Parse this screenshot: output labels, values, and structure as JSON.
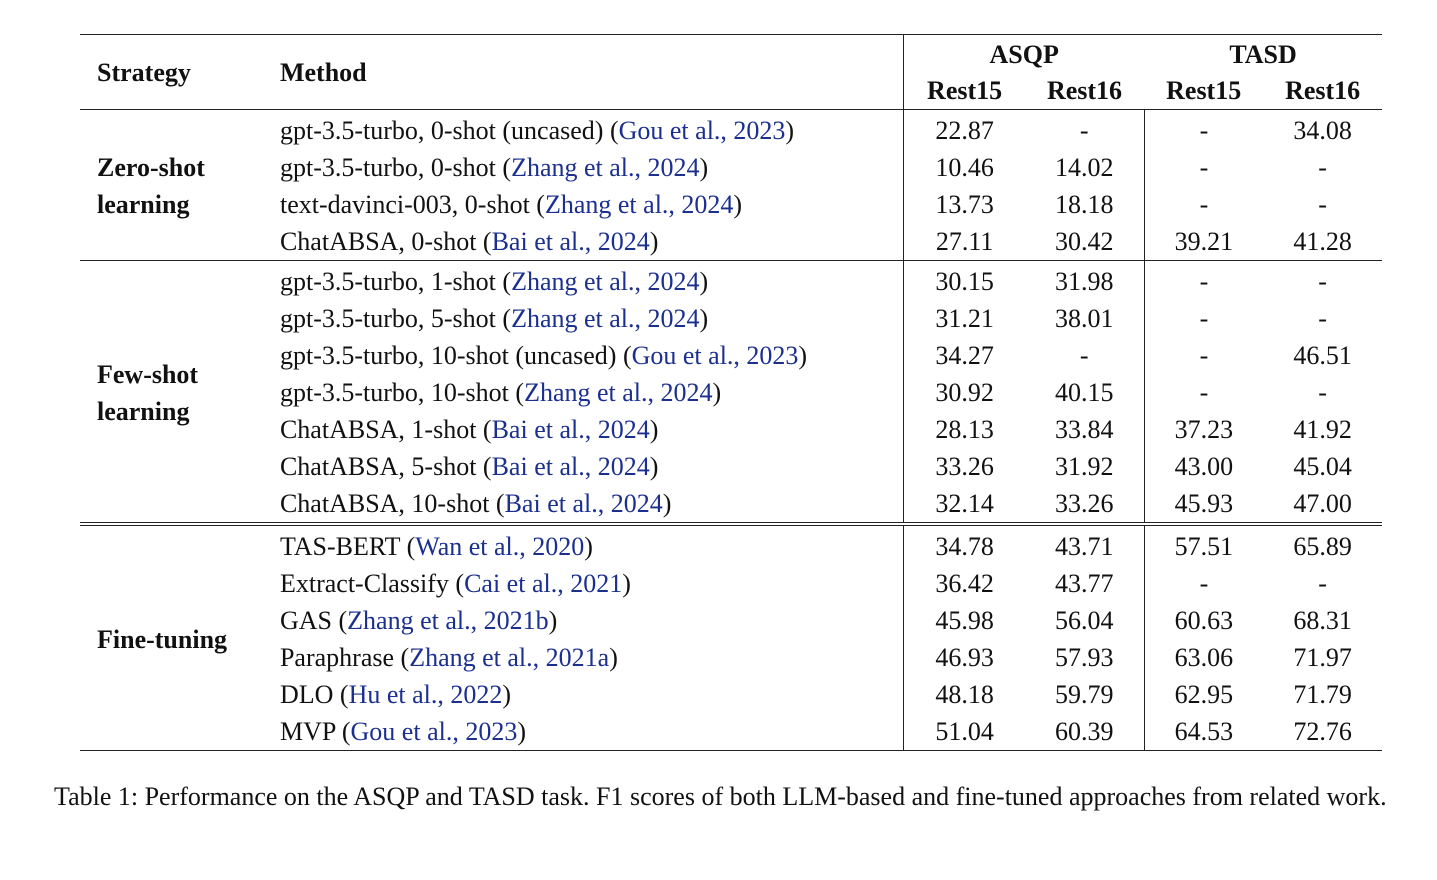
{
  "table": {
    "headers": {
      "strategy": "Strategy",
      "method": "Method",
      "group_asqp": "ASQP",
      "group_tasd": "TASD",
      "sub": [
        "Rest15",
        "Rest16",
        "Rest15",
        "Rest16"
      ]
    },
    "sections": [
      {
        "strategy": "Zero-shot learning",
        "rows": [
          {
            "method": "gpt-3.5-turbo, 0-shot (uncased) (",
            "cite": "Gou et al., 2023",
            "close": ")",
            "values": [
              "22.87",
              "-",
              "-",
              "34.08"
            ],
            "bold": [
              false,
              false,
              false,
              false
            ]
          },
          {
            "method": "gpt-3.5-turbo, 0-shot (",
            "cite": "Zhang et al., 2024",
            "close": ")",
            "values": [
              "10.46",
              "14.02",
              "-",
              "-"
            ],
            "bold": [
              false,
              false,
              false,
              false
            ]
          },
          {
            "method": "text-davinci-003, 0-shot (",
            "cite": "Zhang et al., 2024",
            "close": ")",
            "values": [
              "13.73",
              "18.18",
              "-",
              "-"
            ],
            "bold": [
              false,
              false,
              false,
              false
            ]
          },
          {
            "method": "ChatABSA, 0-shot (",
            "cite": "Bai et al., 2024",
            "close": ")",
            "values": [
              "27.11",
              "30.42",
              "39.21",
              "41.28"
            ],
            "bold": [
              true,
              true,
              true,
              true
            ]
          }
        ]
      },
      {
        "strategy": "Few-shot learning",
        "rows": [
          {
            "method": "gpt-3.5-turbo, 1-shot (",
            "cite": "Zhang et al., 2024",
            "close": ")",
            "values": [
              "30.15",
              "31.98",
              "-",
              "-"
            ],
            "bold": [
              false,
              false,
              false,
              false
            ]
          },
          {
            "method": "gpt-3.5-turbo, 5-shot (",
            "cite": "Zhang et al., 2024",
            "close": ")",
            "values": [
              "31.21",
              "38.01",
              "-",
              "-"
            ],
            "bold": [
              false,
              false,
              false,
              false
            ]
          },
          {
            "method": "gpt-3.5-turbo, 10-shot (uncased) (",
            "cite": "Gou et al., 2023",
            "close": ")",
            "values": [
              "34.27",
              "-",
              "-",
              "46.51"
            ],
            "bold": [
              true,
              false,
              false,
              false
            ]
          },
          {
            "method": "gpt-3.5-turbo, 10-shot (",
            "cite": "Zhang et al., 2024",
            "close": ")",
            "values": [
              "30.92",
              "40.15",
              "-",
              "-"
            ],
            "bold": [
              false,
              true,
              false,
              false
            ]
          },
          {
            "method": "ChatABSA, 1-shot (",
            "cite": "Bai et al., 2024",
            "close": ")",
            "values": [
              "28.13",
              "33.84",
              "37.23",
              "41.92"
            ],
            "bold": [
              false,
              false,
              false,
              false
            ]
          },
          {
            "method": "ChatABSA, 5-shot (",
            "cite": "Bai et al., 2024",
            "close": ")",
            "values": [
              "33.26",
              "31.92",
              "43.00",
              "45.04"
            ],
            "bold": [
              false,
              false,
              false,
              false
            ]
          },
          {
            "method": "ChatABSA, 10-shot (",
            "cite": "Bai et al., 2024",
            "close": ")",
            "values": [
              "32.14",
              "33.26",
              "45.93",
              "47.00"
            ],
            "bold": [
              false,
              false,
              true,
              true
            ]
          }
        ]
      },
      {
        "strategy": "Fine-tuning",
        "rows": [
          {
            "method": "TAS-BERT (",
            "cite": "Wan et al., 2020",
            "close": ")",
            "values": [
              "34.78",
              "43.71",
              "57.51",
              "65.89"
            ],
            "bold": [
              false,
              false,
              false,
              false
            ]
          },
          {
            "method": "Extract-Classify (",
            "cite": "Cai et al., 2021",
            "close": ")",
            "values": [
              "36.42",
              "43.77",
              "-",
              "-"
            ],
            "bold": [
              false,
              false,
              false,
              false
            ]
          },
          {
            "method": "GAS (",
            "cite": "Zhang et al., 2021b",
            "close": ")",
            "values": [
              "45.98",
              "56.04",
              "60.63",
              "68.31"
            ],
            "bold": [
              false,
              false,
              false,
              false
            ]
          },
          {
            "method": "Paraphrase (",
            "cite": "Zhang et al., 2021a",
            "close": ")",
            "values": [
              "46.93",
              "57.93",
              "63.06",
              "71.97"
            ],
            "bold": [
              false,
              false,
              false,
              false
            ]
          },
          {
            "method": "DLO (",
            "cite": "Hu et al., 2022",
            "close": ")",
            "values": [
              "48.18",
              "59.79",
              "62.95",
              "71.79"
            ],
            "bold": [
              false,
              false,
              false,
              false
            ]
          },
          {
            "method": "MVP (",
            "cite": "Gou et al., 2023",
            "close": ")",
            "values": [
              "51.04",
              "60.39",
              "64.53",
              "72.76"
            ],
            "bold": [
              true,
              true,
              true,
              true
            ]
          }
        ]
      }
    ]
  },
  "caption": "Table 1: Performance on the ASQP and TASD task. F1 scores of both LLM-based and fine-tuned approaches from related work.",
  "colors": {
    "citation": "#1b2f8f",
    "text": "#111111"
  }
}
